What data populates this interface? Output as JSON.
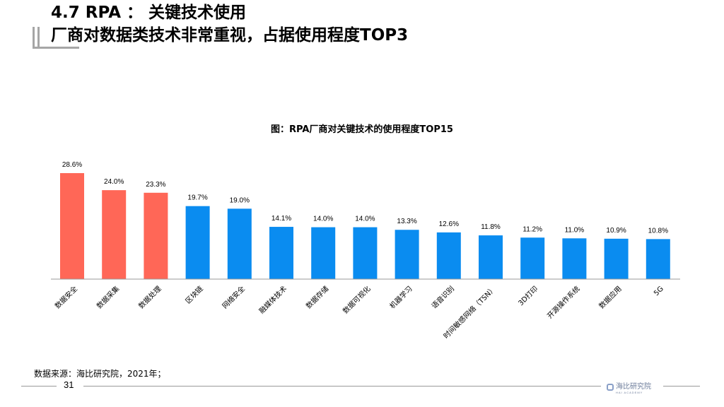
{
  "header": {
    "title_line1": "4.7 RPA ： 关键技术使用",
    "title_line2": "厂商对数据类技术非常重视，占据使用程度TOP3"
  },
  "footer": {
    "source": "数据来源：海比研究院，2021年；",
    "page_number": "31",
    "logo_text": "海比研究院",
    "logo_sub": "HAI ACADEMY"
  },
  "colors": {
    "highlight": "#FF6757",
    "normal": "#0A8CF0"
  },
  "chart_data": {
    "type": "bar",
    "title": "图：RPA厂商对关键技术的使用程度TOP15",
    "categories": [
      "数据安全",
      "数据采集",
      "数据处理",
      "区块链",
      "网络安全",
      "融媒体技术",
      "数据存储",
      "数据可视化",
      "机器学习",
      "语音识别",
      "时间敏感网络（TSN）",
      "3D打印",
      "开源操作系统",
      "数据应用",
      "5G"
    ],
    "values": [
      28.6,
      24.0,
      23.3,
      19.7,
      19.0,
      14.1,
      14.0,
      14.0,
      13.3,
      12.6,
      11.8,
      11.2,
      11.0,
      10.9,
      10.8
    ],
    "data_labels": [
      "28.6%",
      "24.0%",
      "23.3%",
      "19.7%",
      "19.0%",
      "14.1%",
      "14.0%",
      "14.0%",
      "13.3%",
      "12.6%",
      "11.8%",
      "11.2%",
      "11.0%",
      "10.9%",
      "10.8%"
    ],
    "highlighted_count": 3,
    "unit": "%",
    "ylim": [
      0,
      30
    ],
    "grid": false,
    "xlabel": "",
    "ylabel": ""
  }
}
